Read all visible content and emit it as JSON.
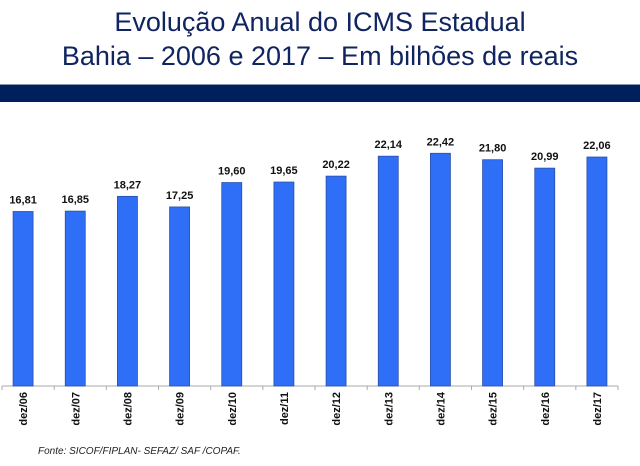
{
  "header": {
    "title_line1": "Evolução Anual do ICMS Estadual",
    "title_line2": "Bahia – 2006 e 2017 – Em bilhões de reais",
    "band_color": "#00205c"
  },
  "chart_data": {
    "type": "bar",
    "title": "Evolução Anual do ICMS Estadual — Bahia – 2006 e 2017 – Em bilhões de reais",
    "xlabel": "",
    "ylabel": "",
    "categories": [
      "dez/06",
      "dez/07",
      "dez/08",
      "dez/09",
      "dez/10",
      "dez/11",
      "dez/12",
      "dez/13",
      "dez/14",
      "dez/15",
      "dez/16",
      "dez/17"
    ],
    "values": [
      16.81,
      16.85,
      18.27,
      17.25,
      19.6,
      19.65,
      20.22,
      22.14,
      22.42,
      21.8,
      20.99,
      22.06
    ],
    "data_labels": [
      "16,81",
      "16,85",
      "18,27",
      "17,25",
      "19,60",
      "19,65",
      "20,22",
      "22,14",
      "22,42",
      "21,80",
      "20,99",
      "22,06"
    ],
    "ylim": [
      0,
      25
    ],
    "grid": false,
    "legend": "none",
    "bar_color": "#2f6ff7"
  },
  "footer": {
    "source": "Fonte: SICOF/FIPLAN- SEFAZ/ SAF /COPAF."
  }
}
